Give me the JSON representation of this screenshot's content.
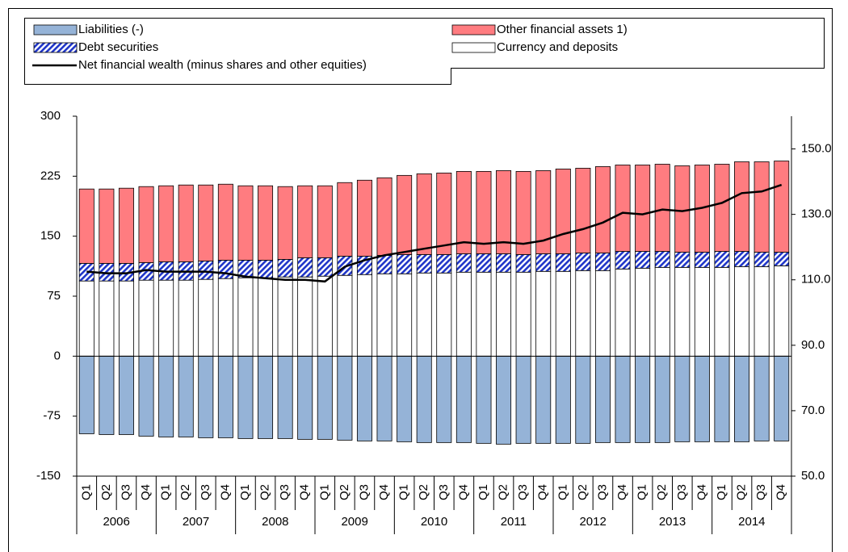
{
  "chart_data": {
    "type": "bar",
    "categories": [
      "Q1",
      "Q2",
      "Q3",
      "Q4",
      "Q1",
      "Q2",
      "Q3",
      "Q4",
      "Q1",
      "Q2",
      "Q3",
      "Q4",
      "Q1",
      "Q2",
      "Q3",
      "Q4",
      "Q1",
      "Q2",
      "Q3",
      "Q4",
      "Q1",
      "Q2",
      "Q3",
      "Q4",
      "Q1",
      "Q2",
      "Q3",
      "Q4",
      "Q1",
      "Q2",
      "Q3",
      "Q4",
      "Q1",
      "Q2",
      "Q3",
      "Q4"
    ],
    "years": [
      "2006",
      "2007",
      "2008",
      "2009",
      "2010",
      "2011",
      "2012",
      "2013",
      "2014"
    ],
    "series": [
      {
        "name": "Liabilities (-)",
        "color": "#95b3d7",
        "values": [
          -97,
          -98,
          -98,
          -100,
          -101,
          -101,
          -102,
          -102,
          -103,
          -103,
          -103,
          -104,
          -104,
          -105,
          -106,
          -106,
          -107,
          -108,
          -108,
          -108,
          -109,
          -110,
          -109,
          -109,
          -109,
          -109,
          -108,
          -108,
          -108,
          -108,
          -107,
          -107,
          -107,
          -107,
          -106,
          -106
        ]
      },
      {
        "name": "Other financial assets 1)",
        "color": "#ff7c80",
        "values": [
          93,
          93,
          94,
          95,
          95,
          96,
          95,
          95,
          93,
          93,
          91,
          90,
          90,
          92,
          95,
          97,
          99,
          101,
          102,
          103,
          103,
          104,
          104,
          104,
          106,
          106,
          108,
          108,
          108,
          109,
          108,
          109,
          109,
          112,
          113,
          114
        ]
      },
      {
        "name": "Debt securities",
        "color": "#1f35c8",
        "pattern": "diagonal",
        "values": [
          22,
          22,
          22,
          22,
          23,
          23,
          23,
          23,
          22,
          22,
          22,
          24,
          23,
          24,
          23,
          23,
          24,
          23,
          23,
          23,
          23,
          23,
          22,
          22,
          22,
          22,
          22,
          22,
          21,
          20,
          19,
          19,
          20,
          19,
          18,
          17
        ]
      },
      {
        "name": "Currency and deposits",
        "color": "#ffffff",
        "values": [
          94,
          94,
          94,
          95,
          95,
          95,
          96,
          97,
          98,
          98,
          99,
          99,
          100,
          101,
          102,
          103,
          103,
          104,
          104,
          105,
          105,
          105,
          105,
          106,
          106,
          107,
          107,
          109,
          110,
          111,
          111,
          111,
          111,
          112,
          112,
          113
        ]
      },
      {
        "name": "Net financial wealth (minus shares and other equities)",
        "type": "line",
        "axis": "y2",
        "color": "#000000",
        "values": [
          112.5,
          112,
          112,
          113,
          112.5,
          112.5,
          112.5,
          112,
          111,
          110.5,
          110,
          110,
          109.5,
          114,
          116,
          117.5,
          118.5,
          119.5,
          120.5,
          121.5,
          121,
          121.5,
          121,
          122,
          124,
          125.5,
          127.5,
          130.5,
          130,
          131.5,
          131,
          132,
          133.5,
          136.5,
          137,
          139
        ]
      }
    ],
    "ylim": [
      -150,
      300
    ],
    "yticks": [
      -150,
      -75,
      0,
      75,
      150,
      225,
      300
    ],
    "y2lim": [
      50,
      160
    ],
    "y2ticks": [
      {
        "value": 50,
        "label": "50.0"
      },
      {
        "value": 70,
        "label": "70.0"
      },
      {
        "value": 90,
        "label": "90.0"
      },
      {
        "value": 110,
        "label": "110.0"
      },
      {
        "value": 130,
        "label": "130.0"
      },
      {
        "value": 150,
        "label": "150.0"
      }
    ]
  }
}
